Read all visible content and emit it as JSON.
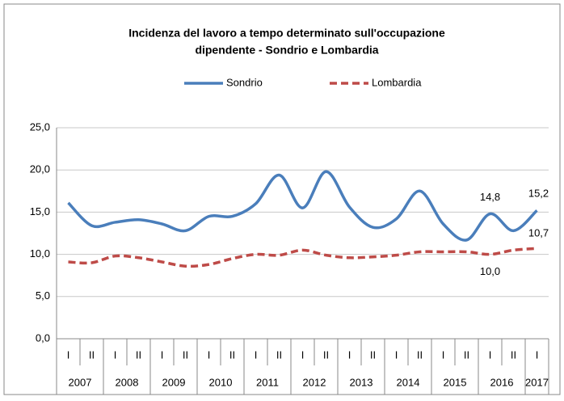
{
  "chart_data": {
    "type": "line",
    "title": [
      "Incidenza del lavoro a tempo determinato sull'occupazione",
      "dipendente - Sondrio e Lombardia"
    ],
    "categories": [
      "I",
      "II",
      "I",
      "II",
      "I",
      "II",
      "I",
      "II",
      "I",
      "II",
      "I",
      "II",
      "I",
      "II",
      "I",
      "II",
      "I",
      "II",
      "I",
      "II",
      "I"
    ],
    "year_groups": [
      "2007",
      "2008",
      "2009",
      "2010",
      "2011",
      "2012",
      "2013",
      "2014",
      "2015",
      "2016",
      "2017"
    ],
    "series": [
      {
        "name": "Sondrio",
        "color": "#4a7ebb",
        "dash": false,
        "values": [
          16.1,
          13.4,
          13.8,
          14.1,
          13.6,
          12.8,
          14.5,
          14.5,
          16.0,
          19.4,
          15.5,
          19.8,
          15.6,
          13.2,
          14.2,
          17.5,
          13.6,
          11.7,
          14.8,
          12.8,
          15.2
        ],
        "value_labels": [
          null,
          null,
          null,
          null,
          null,
          null,
          null,
          null,
          null,
          null,
          null,
          null,
          null,
          null,
          null,
          null,
          null,
          null,
          "14,8",
          null,
          "15,2"
        ]
      },
      {
        "name": "Lombardia",
        "color": "#be4b48",
        "dash": true,
        "values": [
          9.1,
          9.0,
          9.8,
          9.6,
          9.1,
          8.6,
          8.8,
          9.5,
          10.0,
          9.9,
          10.5,
          9.9,
          9.6,
          9.7,
          9.9,
          10.3,
          10.3,
          10.3,
          10.0,
          10.5,
          10.7
        ],
        "value_labels": [
          null,
          null,
          null,
          null,
          null,
          null,
          null,
          null,
          null,
          null,
          null,
          null,
          null,
          null,
          null,
          null,
          null,
          null,
          "10,0",
          null,
          "10,7"
        ]
      }
    ],
    "ylim": [
      0,
      25
    ],
    "yticks": [
      {
        "value": 0,
        "label": "0,0"
      },
      {
        "value": 5,
        "label": "5,0"
      },
      {
        "value": 10,
        "label": "10,0"
      },
      {
        "value": 15,
        "label": "15,0"
      },
      {
        "value": 20,
        "label": "20,0"
      },
      {
        "value": 25,
        "label": "25,0"
      }
    ],
    "grid": true,
    "legend": "top",
    "smooth": true
  }
}
